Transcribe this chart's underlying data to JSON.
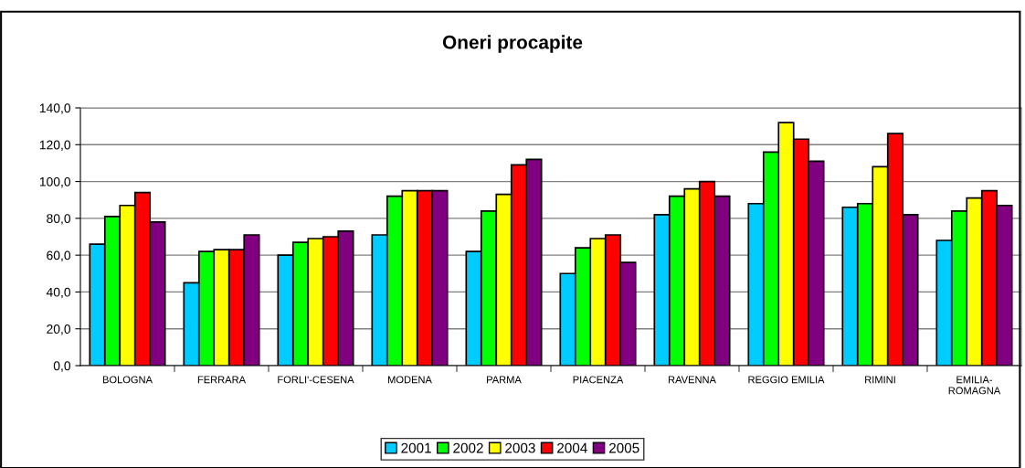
{
  "chart_data": {
    "type": "bar",
    "title": "Oneri procapite",
    "categories": [
      "BOLOGNA",
      "FERRARA",
      "FORLI'-CESENA",
      "MODENA",
      "PARMA",
      "PIACENZA",
      "RAVENNA",
      "REGGIO EMILIA",
      "RIMINI",
      "EMILIA-\nROMAGNA"
    ],
    "series": [
      {
        "name": "2001",
        "color": "#00ccff",
        "values": [
          66,
          45,
          60,
          71,
          62,
          50,
          82,
          88,
          86,
          68
        ]
      },
      {
        "name": "2002",
        "color": "#00ff00",
        "values": [
          81,
          62,
          67,
          92,
          84,
          64,
          92,
          116,
          88,
          84
        ]
      },
      {
        "name": "2003",
        "color": "#ffff00",
        "values": [
          87,
          63,
          69,
          95,
          93,
          69,
          96,
          132,
          108,
          91
        ]
      },
      {
        "name": "2004",
        "color": "#ff0000",
        "values": [
          94,
          63,
          70,
          95,
          109,
          71,
          100,
          123,
          126,
          95
        ]
      },
      {
        "name": "2005",
        "color": "#800080",
        "values": [
          78,
          71,
          73,
          95,
          112,
          56,
          92,
          111,
          82,
          87
        ]
      }
    ],
    "ylim": [
      0,
      140
    ],
    "yticks": [
      {
        "value": 0,
        "label": "0,0"
      },
      {
        "value": 20,
        "label": "20,0"
      },
      {
        "value": 40,
        "label": "40,0"
      },
      {
        "value": 60,
        "label": "60,0"
      },
      {
        "value": 80,
        "label": "80,0"
      },
      {
        "value": 100,
        "label": "100,0"
      },
      {
        "value": 120,
        "label": "120,0"
      },
      {
        "value": 140,
        "label": "140,0"
      }
    ],
    "grid": "y",
    "legend": "bottom"
  }
}
